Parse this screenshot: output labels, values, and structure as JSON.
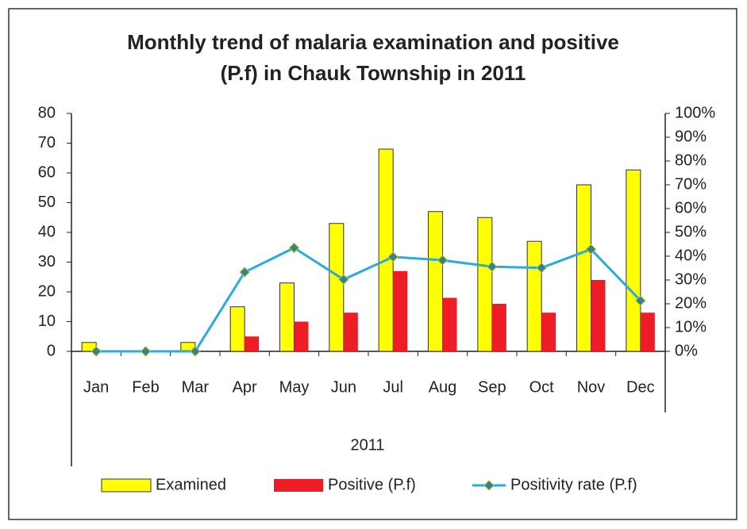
{
  "chart_data": {
    "type": "bar_line",
    "title": [
      "Monthly trend of malaria examination and positive",
      "(P.f) in Chauk Township in 2011"
    ],
    "categories": [
      "Jan",
      "Feb",
      "Mar",
      "Apr",
      "May",
      "Jun",
      "Jul",
      "Aug",
      "Sep",
      "Oct",
      "Nov",
      "Dec"
    ],
    "group_label": "2011",
    "series": [
      {
        "name": "Examined",
        "color": "#ffff00",
        "type": "bar",
        "values": [
          3,
          0,
          3,
          15,
          23,
          43,
          68,
          47,
          45,
          37,
          56,
          61
        ]
      },
      {
        "name": "Positive (P.f)",
        "color": "#ee1c25",
        "type": "bar",
        "values": [
          0,
          0,
          0,
          5,
          10,
          13,
          27,
          18,
          16,
          13,
          24,
          13
        ]
      },
      {
        "name": "Positivity rate (P.f)",
        "color": "#29abe2",
        "type": "line",
        "axis": "y2",
        "values": [
          0,
          0,
          0,
          33.3,
          43.5,
          30.2,
          39.7,
          38.3,
          35.6,
          35.1,
          42.9,
          21.3
        ]
      }
    ],
    "ylim": [
      0,
      80
    ],
    "yticks": [
      0,
      10,
      20,
      30,
      40,
      50,
      60,
      70,
      80
    ],
    "y2lim": [
      0,
      100
    ],
    "y2ticks": [
      {
        "value": 0,
        "label": "0%"
      },
      {
        "value": 10,
        "label": "10%"
      },
      {
        "value": 20,
        "label": "20%"
      },
      {
        "value": 30,
        "label": "30%"
      },
      {
        "value": 40,
        "label": "40%"
      },
      {
        "value": 50,
        "label": "50%"
      },
      {
        "value": 60,
        "label": "60%"
      },
      {
        "value": 70,
        "label": "70%"
      },
      {
        "value": 80,
        "label": "80%"
      },
      {
        "value": 90,
        "label": "90%"
      },
      {
        "value": 100,
        "label": "100%"
      }
    ],
    "grid": false
  }
}
